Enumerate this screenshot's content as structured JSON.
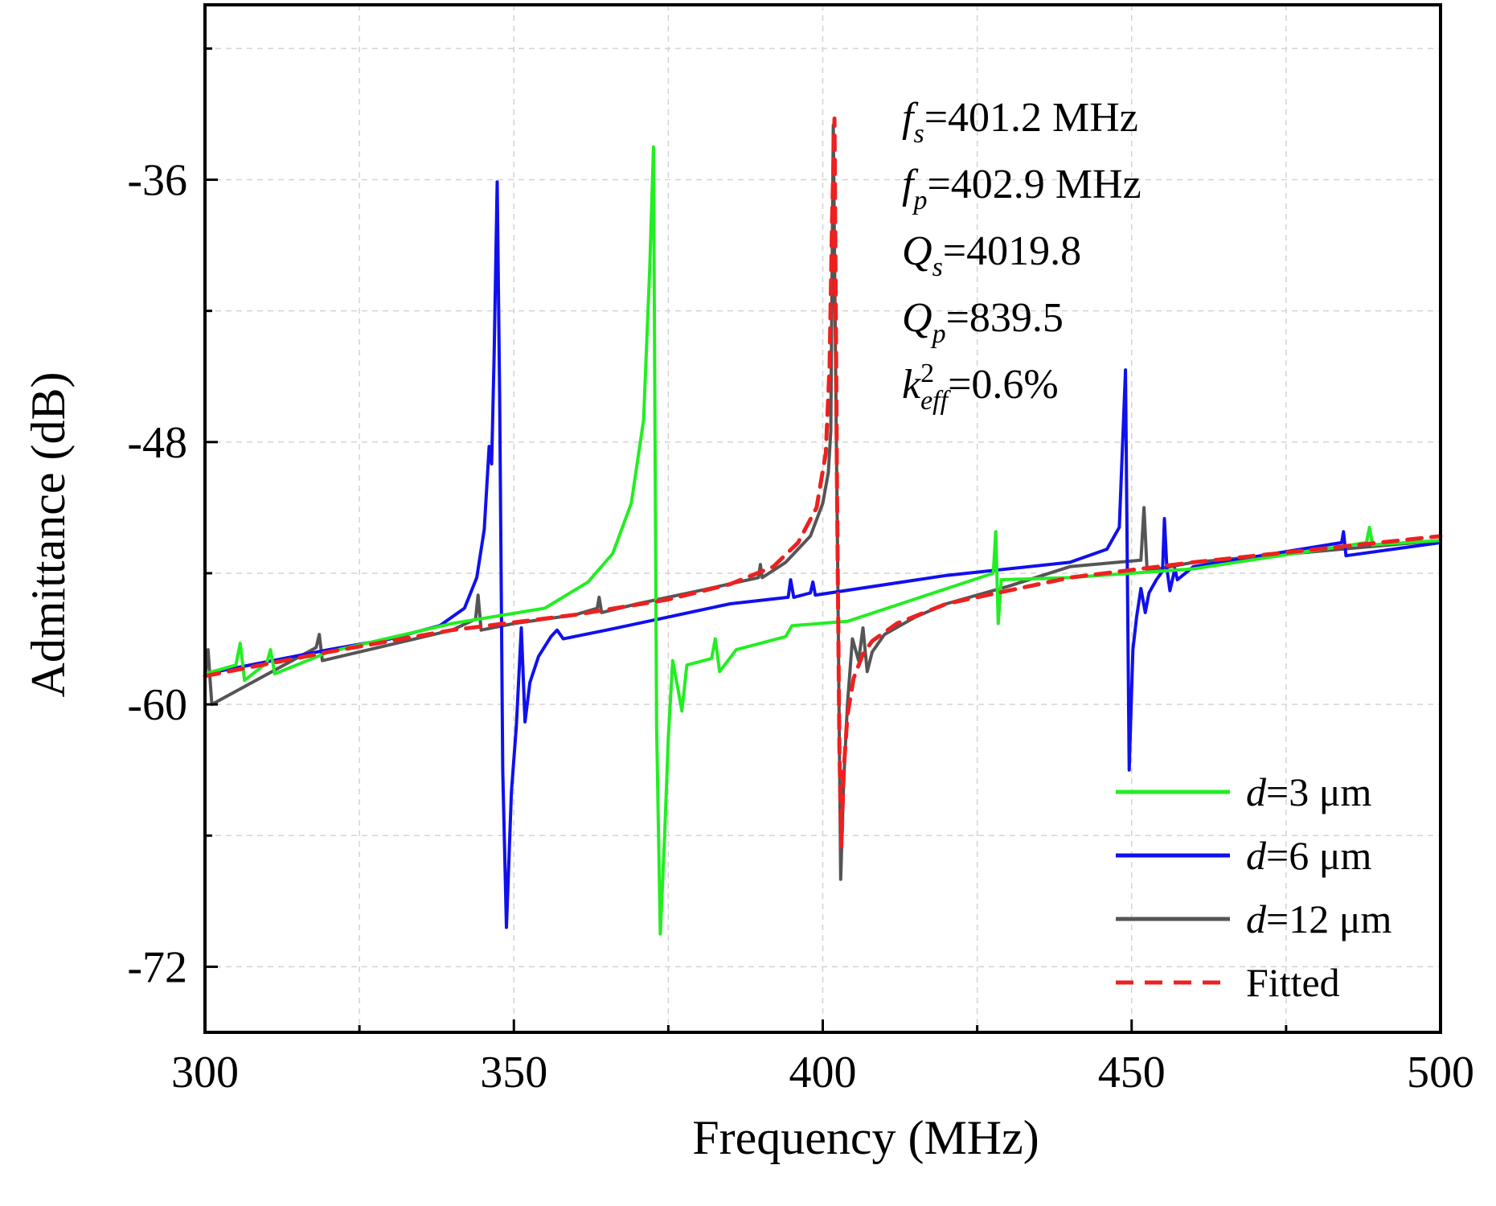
{
  "chart_data": {
    "type": "line",
    "xlabel": "Frequency (MHz)",
    "ylabel": "Admittance (dB)",
    "xlim": [
      300,
      500
    ],
    "ylim": [
      -75,
      -28
    ],
    "xticks": [
      300,
      350,
      400,
      450,
      500
    ],
    "yticks": [
      -36,
      -48,
      -60,
      -72
    ],
    "grid": true,
    "legend_position": "bottom-right",
    "annotations": [
      {
        "main": "f",
        "sub": "s",
        "sup": "",
        "rest": "=401.2 MHz"
      },
      {
        "main": "f",
        "sub": "p",
        "sup": "",
        "rest": "=402.9 MHz"
      },
      {
        "main": "Q",
        "sub": "s",
        "sup": "",
        "rest": "=4019.8"
      },
      {
        "main": "Q",
        "sub": "p",
        "sup": "",
        "rest": "=839.5"
      },
      {
        "main": "k",
        "sub": "eff",
        "sup": "2",
        "rest": "=0.6%"
      }
    ],
    "series": [
      {
        "name": "d=3 μm",
        "italic_prefix": "d",
        "label_rest": "=3 μm",
        "color": "#22ee22",
        "dash": false,
        "x": [
          300,
          305,
          305.7,
          306.4,
          310,
          310.6,
          311.3,
          320,
          340,
          355,
          362,
          366,
          369,
          371,
          372,
          372.6,
          373.1,
          373.7,
          374.4,
          375,
          375.7,
          376.5,
          377.2,
          378,
          382,
          382.6,
          383.3,
          386,
          394,
          395,
          404,
          427.6,
          428,
          428.4,
          428.9,
          440,
          460,
          488,
          488.5,
          489,
          500
        ],
        "y": [
          -58.6,
          -58.2,
          -57.2,
          -58.9,
          -58.1,
          -57.5,
          -58.6,
          -57.6,
          -56.3,
          -55.6,
          -54.4,
          -53.1,
          -50.8,
          -47.0,
          -40.0,
          -34.5,
          -61.0,
          -70.5,
          -66.0,
          -61.5,
          -58.0,
          -59.2,
          -60.3,
          -58.2,
          -57.9,
          -57.0,
          -58.5,
          -57.5,
          -56.9,
          -56.4,
          -56.2,
          -54.0,
          -52.1,
          -56.3,
          -54.3,
          -54.2,
          -53.8,
          -52.6,
          -51.9,
          -52.7,
          -52.5
        ]
      },
      {
        "name": "d=6 μm",
        "italic_prefix": "d",
        "label_rest": "=6 μm",
        "color": "#1010ee",
        "dash": false,
        "x": [
          300,
          320,
          330,
          338,
          342,
          344,
          345.2,
          346,
          346.4,
          346.8,
          347.3,
          347.7,
          348.2,
          348.8,
          349.6,
          350.4,
          351.2,
          351.8,
          352.6,
          354,
          356,
          357,
          358,
          365,
          375,
          385,
          394.4,
          394.8,
          395.3,
          398,
          398.4,
          398.8,
          420,
          440,
          446,
          448,
          449,
          449.6,
          450.2,
          450.8,
          451.5,
          452.2,
          452.8,
          454,
          455,
          455.3,
          455.7,
          456.2,
          457,
          457.4,
          460,
          484,
          484.3,
          484.7,
          500
        ],
        "y": [
          -58.6,
          -57.5,
          -57.0,
          -56.4,
          -55.6,
          -54.2,
          -52.0,
          -48.2,
          -49.0,
          -44.0,
          -36.1,
          -46.0,
          -63.0,
          -70.2,
          -64.0,
          -61.0,
          -56.5,
          -60.8,
          -59.0,
          -57.8,
          -56.9,
          -56.6,
          -57.0,
          -56.6,
          -56.0,
          -55.4,
          -55.1,
          -54.3,
          -55.1,
          -54.9,
          -54.4,
          -55.0,
          -54.1,
          -53.5,
          -52.9,
          -51.9,
          -44.7,
          -63.0,
          -57.5,
          -56.0,
          -54.7,
          -55.8,
          -54.9,
          -54.3,
          -53.9,
          -51.5,
          -53.8,
          -54.8,
          -53.8,
          -54.3,
          -53.7,
          -52.6,
          -52.1,
          -53.2,
          -52.6
        ]
      },
      {
        "name": "d=12 μm",
        "italic_prefix": "d",
        "label_rest": "=12 μm",
        "color": "#555555",
        "dash": false,
        "x": [
          300,
          300.5,
          301.1,
          318,
          318.5,
          319,
          340,
          343.8,
          344.2,
          344.7,
          350,
          360,
          363.5,
          363.8,
          364.2,
          370,
          380,
          389.6,
          389.9,
          390.2,
          394,
          398,
          400,
          400.9,
          401.3,
          401.7,
          402.1,
          402.4,
          402.9,
          403.4,
          404,
          404.8,
          405.8,
          406.5,
          407.2,
          408,
          410,
          415,
          420,
          430,
          440,
          451.5,
          452,
          452.5,
          460,
          500
        ],
        "y": [
          -58.8,
          -57.5,
          -60.0,
          -57.4,
          -56.8,
          -58.0,
          -56.6,
          -56.1,
          -55.0,
          -56.6,
          -56.3,
          -55.9,
          -55.6,
          -55.1,
          -55.8,
          -55.4,
          -54.8,
          -54.2,
          -53.6,
          -54.2,
          -53.5,
          -52.3,
          -50.8,
          -49.4,
          -47.5,
          -33.5,
          -45.0,
          -53.0,
          -68.0,
          -63.5,
          -60.0,
          -57.0,
          -58.0,
          -56.5,
          -58.5,
          -57.6,
          -56.8,
          -56.0,
          -55.4,
          -54.6,
          -53.7,
          -53.4,
          -51.0,
          -53.9,
          -53.5,
          -52.5
        ]
      },
      {
        "name": "Fitted",
        "italic_prefix": "",
        "label_rest": "Fitted",
        "color": "#ee2020",
        "dash": true,
        "x": [
          300,
          320,
          340,
          360,
          375,
          385,
          392,
          396,
          399,
          400.5,
          401.1,
          401.5,
          401.9,
          402.3,
          402.7,
          403.0,
          403.4,
          404,
          405,
          406.5,
          408,
          412,
          420,
          440,
          460,
          480,
          500
        ],
        "y": [
          -58.7,
          -57.6,
          -56.6,
          -55.9,
          -55.2,
          -54.5,
          -53.7,
          -52.6,
          -51.0,
          -48.5,
          -44.5,
          -38.0,
          -33.2,
          -50.0,
          -62.0,
          -66.5,
          -63.0,
          -60.5,
          -58.8,
          -57.7,
          -57.1,
          -56.3,
          -55.4,
          -54.2,
          -53.5,
          -52.9,
          -52.3
        ]
      }
    ]
  }
}
